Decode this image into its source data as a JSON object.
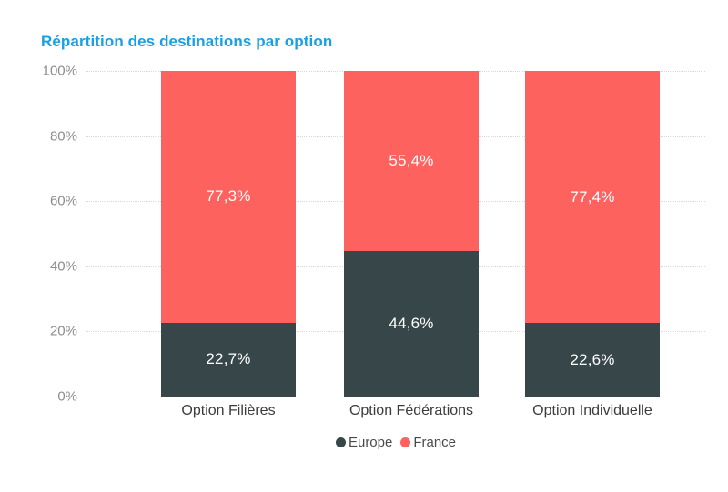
{
  "title": "Répartition des destinations par option",
  "colors": {
    "title": "#18A0E6",
    "europe": "#374649",
    "france": "#FD625E",
    "axis_labels": "#8C8C8C",
    "category_labels": "#3C3C3C",
    "legend_text": "#4A4A4A",
    "gridline": "#D8D8D8",
    "value_labels": "#FFFFFF",
    "background": "#FFFFFF"
  },
  "chart_data": {
    "type": "bar",
    "stacked": true,
    "percent_stacked": true,
    "title": "Répartition des destinations par option",
    "categories": [
      "Option Filières",
      "Option Fédérations",
      "Option Individuelle"
    ],
    "series": [
      {
        "name": "Europe",
        "color": "#374649",
        "values": [
          22.7,
          44.6,
          22.6
        ],
        "labels": [
          "22,7%",
          "44,6%",
          "22,6%"
        ]
      },
      {
        "name": "France",
        "color": "#FD625E",
        "values": [
          77.3,
          55.4,
          77.4
        ],
        "labels": [
          "77,3%",
          "55,4%",
          "77,4%"
        ]
      }
    ],
    "xlabel": "",
    "ylabel": "",
    "ylim": [
      0,
      100
    ],
    "y_ticks": [
      "100%",
      "80%",
      "60%",
      "40%",
      "20%",
      "0%"
    ],
    "grid": "horizontal dotted",
    "legend_position": "bottom-center"
  },
  "legend": {
    "items": [
      {
        "label": "Europe",
        "color": "#374649"
      },
      {
        "label": "France",
        "color": "#FD625E"
      }
    ]
  }
}
